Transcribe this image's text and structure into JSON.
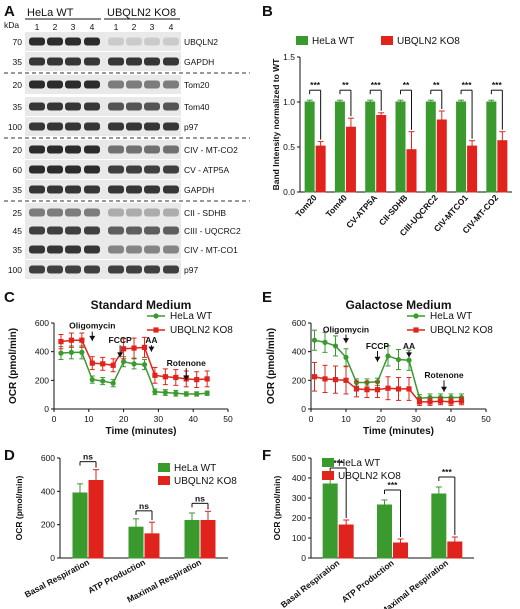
{
  "panel_labels": [
    "A",
    "B",
    "C",
    "D",
    "E",
    "F"
  ],
  "colors": {
    "wt": "#3a9a2e",
    "ko": "#e0231c",
    "blot_bg": "#e9e9e9",
    "band": "#222222"
  },
  "blot": {
    "kda_label": "kDa",
    "group_wt": "HeLa WT",
    "group_ko": "UBQLN2 KO8",
    "lanes": [
      "1",
      "2",
      "3",
      "4",
      "1",
      "2",
      "3",
      "4"
    ],
    "rows": [
      {
        "kda": "70",
        "label": "UBQLN2",
        "wt": 0.95,
        "ko": 0.15
      },
      {
        "kda": "35",
        "label": "GAPDH",
        "wt": 0.9,
        "ko": 0.9
      },
      {
        "kda": "20",
        "label": "Tom20",
        "wt": 0.95,
        "ko": 0.55
      },
      {
        "kda": "35",
        "label": "Tom40",
        "wt": 0.9,
        "ko": 0.75
      },
      {
        "kda": "100",
        "label": "p97",
        "wt": 0.9,
        "ko": 0.9
      },
      {
        "kda": "20",
        "label": "CIV - MT-CO2",
        "wt": 0.95,
        "ko": 0.6
      },
      {
        "kda": "60",
        "label": "CV - ATP5A",
        "wt": 0.95,
        "ko": 0.85
      },
      {
        "kda": "35",
        "label": "GAPDH",
        "wt": 0.9,
        "ko": 0.9
      },
      {
        "kda": "25",
        "label": "CII - SDHB",
        "wt": 0.55,
        "ko": 0.3
      },
      {
        "kda": "45",
        "label": "CIII - UQCRC2",
        "wt": 0.85,
        "ko": 0.7
      },
      {
        "kda": "35",
        "label": "CIV - MT-CO1",
        "wt": 0.9,
        "ko": 0.5
      },
      {
        "kda": "100",
        "label": "p97",
        "wt": 0.85,
        "ko": 0.85
      }
    ]
  },
  "chart_data": [
    {
      "panel": "B",
      "type": "bar",
      "ylabel": "Band Intensity normalized to WT",
      "ylim": [
        0,
        1.5
      ],
      "yticks": [
        "0.0",
        "0.5",
        "1.0",
        "1.5"
      ],
      "legend_placement": "top",
      "categories": [
        "Tom20",
        "Tom40",
        "CV-ATP5A",
        "CII-SDHB",
        "CIII-UQCRC2",
        "CIV-MTCO1",
        "CIV-MT-CO2"
      ],
      "series": [
        {
          "name": "HeLa WT",
          "values": [
            1,
            1,
            1,
            1,
            1,
            1,
            1
          ],
          "errors": [
            0.02,
            0.02,
            0.02,
            0.02,
            0.02,
            0.02,
            0.02
          ]
        },
        {
          "name": "UBQLN2 KO8",
          "values": [
            0.51,
            0.72,
            0.85,
            0.47,
            0.8,
            0.51,
            0.57
          ],
          "errors": [
            0.05,
            0.1,
            0.03,
            0.2,
            0.1,
            0.06,
            0.1
          ]
        }
      ],
      "significance": [
        "***",
        "**",
        "***",
        "**",
        "**",
        "***",
        "***"
      ]
    },
    {
      "panel": "C",
      "type": "line",
      "title": "Standard Medium",
      "xlabel": "Time (minutes)",
      "ylabel": "OCR (pmol/min)",
      "xlim": [
        0,
        50
      ],
      "ylim": [
        0,
        600
      ],
      "xticks": [
        "0",
        "10",
        "20",
        "30",
        "40",
        "50"
      ],
      "yticks": [
        "0",
        "200",
        "400",
        "600"
      ],
      "legend_placement": "top-right",
      "annotations": [
        {
          "text": "Oligomycin",
          "x": 11,
          "label_y": 560,
          "arrow_from": 540,
          "arrow_to": 475
        },
        {
          "text": "FCCP",
          "x": 19,
          "label_y": 460,
          "arrow_from": 445,
          "arrow_to": 360
        },
        {
          "text": "AA",
          "x": 28,
          "label_y": 460,
          "arrow_from": 445,
          "arrow_to": 400
        },
        {
          "text": "Rotenone",
          "x": 38,
          "label_y": 300,
          "arrow_from": 285,
          "arrow_to": 200
        }
      ],
      "series": [
        {
          "name": "HeLa WT",
          "x": [
            2,
            5,
            8,
            11,
            14,
            17,
            20,
            23,
            26,
            29,
            32,
            35,
            38,
            41,
            44
          ],
          "y": [
            390,
            395,
            395,
            205,
            195,
            180,
            330,
            315,
            310,
            120,
            115,
            110,
            105,
            105,
            110
          ],
          "err": [
            45,
            45,
            45,
            25,
            25,
            25,
            35,
            35,
            35,
            20,
            20,
            20,
            15,
            15,
            15
          ]
        },
        {
          "name": "UBQLN2 KO8",
          "x": [
            2,
            5,
            8,
            11,
            14,
            17,
            20,
            23,
            26,
            29,
            32,
            35,
            38,
            41,
            44
          ],
          "y": [
            470,
            480,
            480,
            320,
            315,
            305,
            420,
            425,
            430,
            235,
            225,
            220,
            210,
            205,
            210
          ],
          "err": [
            50,
            50,
            50,
            45,
            45,
            45,
            70,
            70,
            70,
            55,
            55,
            55,
            55,
            55,
            55
          ]
        }
      ]
    },
    {
      "panel": "D",
      "type": "bar",
      "ylabel": "OCR (pmol/min)",
      "ylim": [
        0,
        600
      ],
      "yticks": [
        "0",
        "200",
        "400",
        "600"
      ],
      "legend_placement": "top-right",
      "categories": [
        "Basal Respiration",
        "ATP Production",
        "Maximal Respiration"
      ],
      "series": [
        {
          "name": "HeLa WT",
          "values": [
            390,
            185,
            225
          ],
          "errors": [
            55,
            50,
            45
          ]
        },
        {
          "name": "UBQLN2 KO8",
          "values": [
            465,
            145,
            225
          ],
          "errors": [
            65,
            70,
            55
          ]
        }
      ],
      "significance": [
        "ns",
        "ns",
        "ns"
      ]
    },
    {
      "panel": "E",
      "type": "line",
      "title": "Galactose Medium",
      "xlabel": "Time (minutes)",
      "ylabel": "OCR (pmol/min)",
      "xlim": [
        0,
        50
      ],
      "ylim": [
        0,
        600
      ],
      "xticks": [
        "0",
        "10",
        "20",
        "30",
        "40",
        "50"
      ],
      "yticks": [
        "0",
        "200",
        "400",
        "600"
      ],
      "legend_placement": "top-right",
      "annotations": [
        {
          "text": "Oligomycin",
          "x": 10,
          "label_y": 535,
          "arrow_from": 520,
          "arrow_to": 460
        },
        {
          "text": "FCCP",
          "x": 19,
          "label_y": 420,
          "arrow_from": 405,
          "arrow_to": 330
        },
        {
          "text": "AA",
          "x": 28,
          "label_y": 420,
          "arrow_from": 405,
          "arrow_to": 360
        },
        {
          "text": "Rotenone",
          "x": 38,
          "label_y": 215,
          "arrow_from": 200,
          "arrow_to": 120
        }
      ],
      "series": [
        {
          "name": "HeLa WT",
          "x": [
            1,
            4,
            7,
            10,
            13,
            16,
            19,
            22,
            25,
            28,
            31,
            34,
            37,
            40,
            43
          ],
          "y": [
            480,
            465,
            440,
            360,
            185,
            185,
            190,
            370,
            345,
            340,
            75,
            80,
            80,
            80,
            80
          ],
          "err": [
            70,
            70,
            70,
            60,
            25,
            25,
            25,
            70,
            70,
            70,
            25,
            25,
            25,
            25,
            25
          ]
        },
        {
          "name": "UBQLN2 KO8",
          "x": [
            1,
            4,
            7,
            10,
            13,
            16,
            19,
            22,
            25,
            28,
            31,
            34,
            37,
            40,
            43
          ],
          "y": [
            225,
            210,
            205,
            200,
            140,
            135,
            135,
            145,
            140,
            140,
            50,
            50,
            55,
            50,
            55
          ],
          "err": [
            100,
            95,
            95,
            95,
            55,
            55,
            55,
            80,
            80,
            80,
            25,
            25,
            25,
            25,
            25
          ]
        }
      ]
    },
    {
      "panel": "F",
      "type": "bar",
      "ylabel": "OCR (pmol/min)",
      "ylim": [
        0,
        500
      ],
      "yticks": [
        "0",
        "100",
        "200",
        "300",
        "400",
        "500"
      ],
      "legend_placement": "top",
      "categories": [
        "Basal Respiration",
        "ATP Production",
        "Maximal Respiration"
      ],
      "series": [
        {
          "name": "HeLa WT",
          "values": [
            370,
            265,
            320
          ],
          "errors": [
            30,
            25,
            35
          ]
        },
        {
          "name": "UBQLN2 KO8",
          "values": [
            165,
            75,
            80
          ],
          "errors": [
            25,
            20,
            25
          ]
        }
      ],
      "significance": [
        "***",
        "***",
        "***"
      ]
    }
  ]
}
